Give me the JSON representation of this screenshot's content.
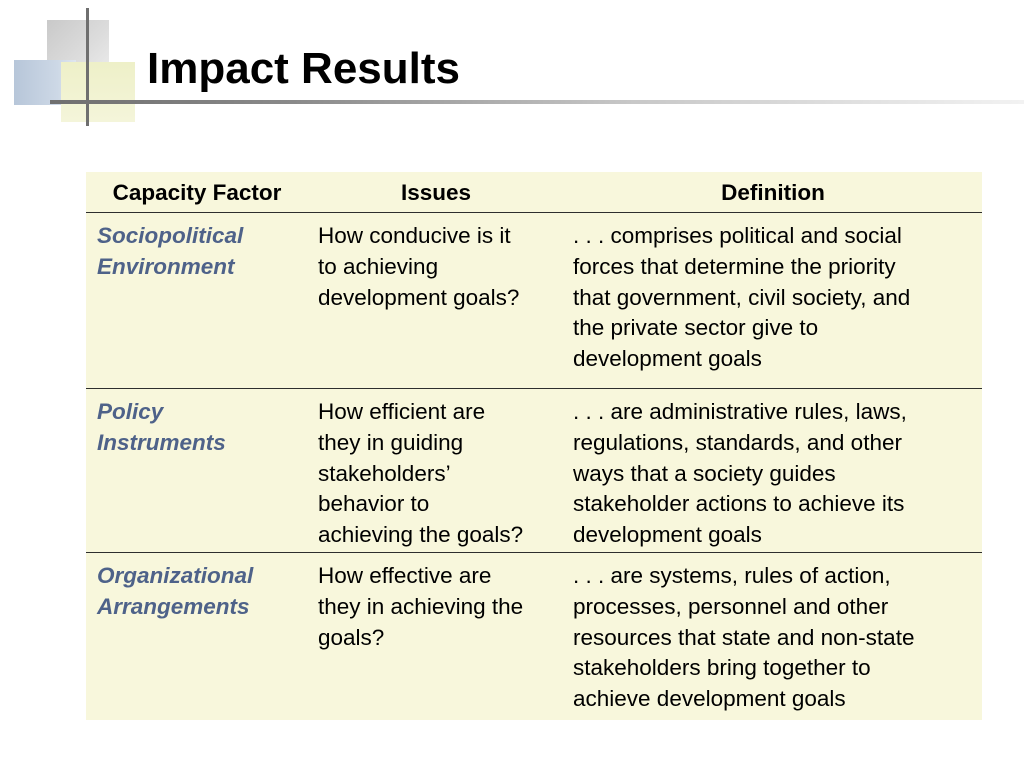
{
  "slide": {
    "title": "Impact Results"
  },
  "table": {
    "headers": [
      "Capacity Factor",
      "Issues",
      "Definition"
    ],
    "rows": [
      {
        "factor": [
          "Sociopolitical",
          "Environment"
        ],
        "issue": [
          "How conducive is it",
          "to achieving",
          "development goals?"
        ],
        "definition": [
          ". . . comprises political and social",
          "forces that determine the priority",
          "that government, civil society, and",
          "the private sector give to",
          "development goals"
        ]
      },
      {
        "factor": [
          "Policy",
          "Instruments"
        ],
        "issue": [
          "How efficient are",
          "they in guiding",
          "stakeholders’",
          "behavior to",
          "achieving the goals?"
        ],
        "definition": [
          ". . . are administrative rules, laws,",
          "regulations, standards, and other",
          "ways that a society guides",
          "stakeholder actions to achieve its",
          "development goals"
        ]
      },
      {
        "factor": [
          "Organizational",
          "Arrangements"
        ],
        "issue": [
          "How effective are",
          "they in achieving the",
          "goals?"
        ],
        "definition": [
          ". . . are systems, rules of action,",
          "processes, personnel and other",
          "resources that state and non-state",
          "stakeholders bring together to",
          "achieve development goals"
        ]
      }
    ]
  },
  "colors": {
    "table_background": "#f8f7dc",
    "factor_text": "#4e6289",
    "rule": "#2e2e2e"
  }
}
